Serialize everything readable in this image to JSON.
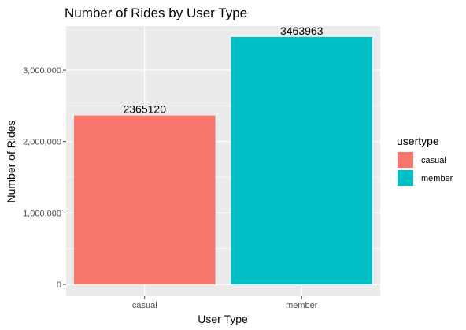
{
  "chart_data": {
    "type": "bar",
    "title": "Number of Rides by User Type",
    "xlabel": "User Type",
    "ylabel": "Number of Rides",
    "categories": [
      "casual",
      "member"
    ],
    "values": [
      2365120,
      3463963
    ],
    "data_labels": [
      "2365120",
      "3463963"
    ],
    "ylim": [
      0,
      3463963
    ],
    "yticks": [
      0,
      1000000,
      2000000,
      3000000
    ],
    "ytick_labels": [
      "0",
      "1,000,000",
      "2,000,000",
      "3,000,000"
    ],
    "colors": {
      "casual": "#F8766D",
      "member": "#00BFC4"
    },
    "legend": {
      "title": "usertype",
      "placement": "right",
      "items": [
        {
          "label": "casual",
          "color": "#F8766D"
        },
        {
          "label": "member",
          "color": "#00BFC4"
        }
      ]
    },
    "grid": true,
    "panel_background": "#EBEBEB"
  }
}
